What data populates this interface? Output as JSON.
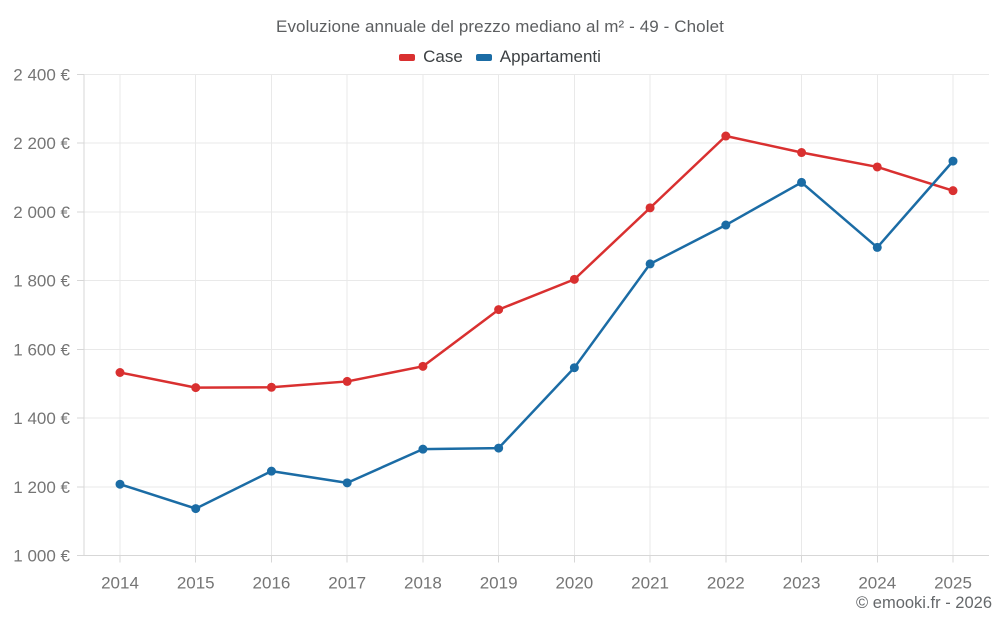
{
  "title": "Evoluzione annuale del prezzo mediano al m² - 49 - Cholet",
  "legend": {
    "items": [
      {
        "label": "Case",
        "color": "#d93030"
      },
      {
        "label": "Appartamenti",
        "color": "#1b6ca5"
      }
    ]
  },
  "footer": {
    "copyright": "© emooki.fr - 2026"
  },
  "chart_data": {
    "type": "line",
    "title": "Evoluzione annuale del prezzo mediano al m² - 49 - Cholet",
    "categories": [
      "2014",
      "2015",
      "2016",
      "2017",
      "2018",
      "2019",
      "2020",
      "2021",
      "2022",
      "2023",
      "2024",
      "2025"
    ],
    "series": [
      {
        "name": "Case",
        "color": "#d93030",
        "values": [
          1533,
          1489,
          1490,
          1507,
          1551,
          1716,
          1804,
          2012,
          2221,
          2173,
          2131,
          2062
        ]
      },
      {
        "name": "Appartamenti",
        "color": "#1b6ca5",
        "values": [
          1208,
          1137,
          1246,
          1212,
          1310,
          1313,
          1547,
          1849,
          1962,
          2086,
          1897,
          2148
        ]
      }
    ],
    "ylim": [
      1000,
      2400
    ],
    "ytick_step": 200,
    "ytick_suffix": " €",
    "xlabel": "",
    "ylabel": "",
    "grid": true,
    "legend_position": "top",
    "marker": "circle"
  }
}
